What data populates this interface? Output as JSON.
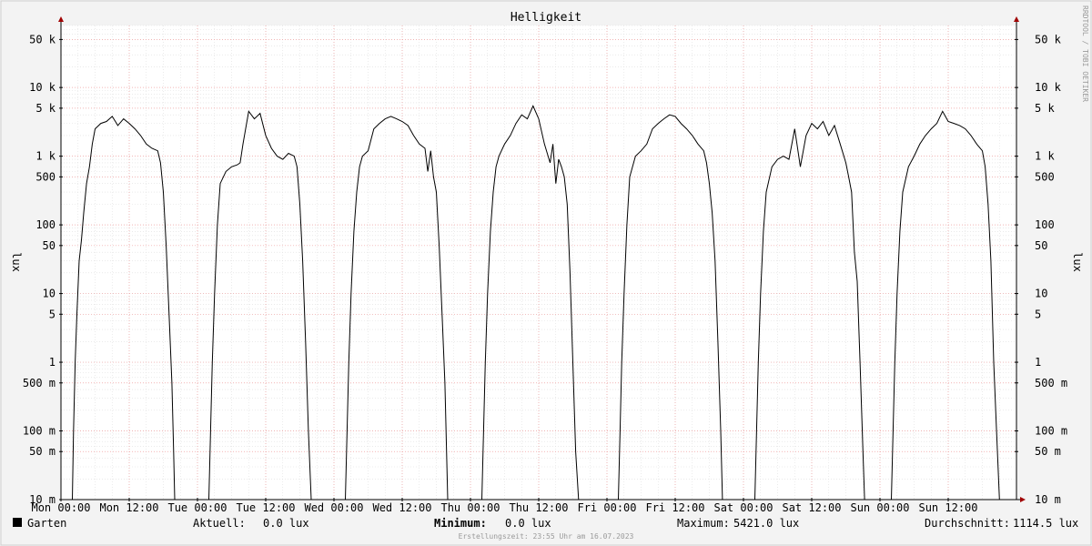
{
  "chart_data": {
    "type": "line",
    "title": "Helligkeit",
    "ylabel": "lux",
    "ylabel_right": "lux",
    "y_scale": "log",
    "ylim": [
      0.01,
      80000
    ],
    "y_ticks": [
      {
        "value": 50000,
        "label": "50 k"
      },
      {
        "value": 10000,
        "label": "10 k"
      },
      {
        "value": 5000,
        "label": "5 k"
      },
      {
        "value": 1000,
        "label": "1 k"
      },
      {
        "value": 500,
        "label": "500"
      },
      {
        "value": 100,
        "label": "100"
      },
      {
        "value": 50,
        "label": "50"
      },
      {
        "value": 10,
        "label": "10"
      },
      {
        "value": 5,
        "label": "5"
      },
      {
        "value": 1,
        "label": "1"
      },
      {
        "value": 0.5,
        "label": "500 m"
      },
      {
        "value": 0.1,
        "label": "100 m"
      },
      {
        "value": 0.05,
        "label": "50 m"
      },
      {
        "value": 0.01,
        "label": "10 m"
      }
    ],
    "xlim": [
      0,
      168
    ],
    "x_tick_labels": [
      "Mon 00:00",
      "Mon 12:00",
      "Tue 00:00",
      "Tue 12:00",
      "Wed 00:00",
      "Wed 12:00",
      "Thu 00:00",
      "Thu 12:00",
      "Fri 00:00",
      "Fri 12:00",
      "Sat 00:00",
      "Sat 12:00",
      "Sun 00:00",
      "Sun 12:00"
    ],
    "x_tick_hours": [
      0,
      12,
      24,
      36,
      48,
      60,
      72,
      84,
      96,
      108,
      120,
      132,
      144,
      156
    ],
    "grid": true,
    "series": [
      {
        "name": "Garten",
        "color": "#000000",
        "points": [
          [
            0,
            0.01
          ],
          [
            2,
            0.01
          ],
          [
            2.2,
            0.1
          ],
          [
            2.5,
            1
          ],
          [
            2.8,
            5
          ],
          [
            3.2,
            30
          ],
          [
            3.6,
            60
          ],
          [
            4,
            150
          ],
          [
            4.5,
            400
          ],
          [
            5,
            700
          ],
          [
            5.5,
            1500
          ],
          [
            6,
            2500
          ],
          [
            7,
            3000
          ],
          [
            8,
            3200
          ],
          [
            9,
            3800
          ],
          [
            10,
            2800
          ],
          [
            11,
            3500
          ],
          [
            12,
            3000
          ],
          [
            13,
            2500
          ],
          [
            14,
            2000
          ],
          [
            15,
            1500
          ],
          [
            16,
            1300
          ],
          [
            17,
            1200
          ],
          [
            17.5,
            800
          ],
          [
            18,
            300
          ],
          [
            18.5,
            50
          ],
          [
            19,
            5
          ],
          [
            19.5,
            0.5
          ],
          [
            19.8,
            0.05
          ],
          [
            20,
            0.01
          ],
          [
            24,
            0.01
          ],
          [
            26,
            0.01
          ],
          [
            26.3,
            0.1
          ],
          [
            26.6,
            1
          ],
          [
            27,
            10
          ],
          [
            27.5,
            100
          ],
          [
            28,
            400
          ],
          [
            29,
            600
          ],
          [
            30,
            700
          ],
          [
            31,
            750
          ],
          [
            31.5,
            800
          ],
          [
            32,
            1500
          ],
          [
            33,
            4500
          ],
          [
            34,
            3500
          ],
          [
            35,
            4200
          ],
          [
            36,
            2000
          ],
          [
            37,
            1300
          ],
          [
            38,
            1000
          ],
          [
            39,
            900
          ],
          [
            40,
            1100
          ],
          [
            41,
            1000
          ],
          [
            41.5,
            700
          ],
          [
            42,
            200
          ],
          [
            42.5,
            30
          ],
          [
            43,
            2
          ],
          [
            43.5,
            0.1
          ],
          [
            44,
            0.01
          ],
          [
            48,
            0.01
          ],
          [
            50,
            0.01
          ],
          [
            50.3,
            0.1
          ],
          [
            50.6,
            1
          ],
          [
            51,
            10
          ],
          [
            51.5,
            80
          ],
          [
            52,
            300
          ],
          [
            52.5,
            700
          ],
          [
            53,
            1000
          ],
          [
            54,
            1200
          ],
          [
            55,
            2500
          ],
          [
            56,
            3000
          ],
          [
            57,
            3500
          ],
          [
            58,
            3800
          ],
          [
            59,
            3500
          ],
          [
            60,
            3200
          ],
          [
            61,
            2800
          ],
          [
            62,
            2000
          ],
          [
            63,
            1500
          ],
          [
            64,
            1300
          ],
          [
            64.5,
            600
          ],
          [
            65,
            1200
          ],
          [
            65.5,
            500
          ],
          [
            66,
            300
          ],
          [
            66.5,
            50
          ],
          [
            67,
            5
          ],
          [
            67.5,
            0.5
          ],
          [
            68,
            0.01
          ],
          [
            72,
            0.01
          ],
          [
            74,
            0.01
          ],
          [
            74.3,
            0.1
          ],
          [
            74.6,
            1
          ],
          [
            75,
            10
          ],
          [
            75.5,
            80
          ],
          [
            76,
            300
          ],
          [
            76.5,
            700
          ],
          [
            77,
            1000
          ],
          [
            78,
            1500
          ],
          [
            79,
            2000
          ],
          [
            80,
            3000
          ],
          [
            81,
            4000
          ],
          [
            82,
            3500
          ],
          [
            83,
            5400
          ],
          [
            84,
            3500
          ],
          [
            85,
            1500
          ],
          [
            86,
            800
          ],
          [
            86.5,
            1500
          ],
          [
            87,
            400
          ],
          [
            87.5,
            900
          ],
          [
            88,
            700
          ],
          [
            88.5,
            500
          ],
          [
            89,
            200
          ],
          [
            89.5,
            20
          ],
          [
            90,
            1
          ],
          [
            90.5,
            0.05
          ],
          [
            91,
            0.01
          ],
          [
            96,
            0.01
          ],
          [
            98,
            0.01
          ],
          [
            98.3,
            0.1
          ],
          [
            98.6,
            1
          ],
          [
            99,
            10
          ],
          [
            99.5,
            100
          ],
          [
            100,
            500
          ],
          [
            101,
            1000
          ],
          [
            102,
            1200
          ],
          [
            103,
            1500
          ],
          [
            104,
            2500
          ],
          [
            105,
            3000
          ],
          [
            106,
            3500
          ],
          [
            107,
            4000
          ],
          [
            108,
            3800
          ],
          [
            109,
            3000
          ],
          [
            110,
            2500
          ],
          [
            111,
            2000
          ],
          [
            112,
            1500
          ],
          [
            113,
            1200
          ],
          [
            113.5,
            800
          ],
          [
            114,
            400
          ],
          [
            114.5,
            150
          ],
          [
            115,
            30
          ],
          [
            115.5,
            2
          ],
          [
            116,
            0.1
          ],
          [
            116.3,
            0.01
          ],
          [
            120,
            0.01
          ],
          [
            122,
            0.01
          ],
          [
            122.3,
            0.1
          ],
          [
            122.6,
            1
          ],
          [
            123,
            10
          ],
          [
            123.5,
            80
          ],
          [
            124,
            300
          ],
          [
            125,
            700
          ],
          [
            126,
            900
          ],
          [
            127,
            1000
          ],
          [
            128,
            900
          ],
          [
            129,
            2500
          ],
          [
            130,
            700
          ],
          [
            131,
            2000
          ],
          [
            132,
            3000
          ],
          [
            133,
            2500
          ],
          [
            134,
            3200
          ],
          [
            135,
            2000
          ],
          [
            136,
            2800
          ],
          [
            137,
            1500
          ],
          [
            138,
            800
          ],
          [
            138.5,
            500
          ],
          [
            139,
            300
          ],
          [
            139.5,
            40
          ],
          [
            140,
            15
          ],
          [
            140.5,
            1
          ],
          [
            141,
            0.05
          ],
          [
            141.3,
            0.01
          ],
          [
            144,
            0.01
          ],
          [
            146,
            0.01
          ],
          [
            146.3,
            0.1
          ],
          [
            146.6,
            1
          ],
          [
            147,
            10
          ],
          [
            147.5,
            80
          ],
          [
            148,
            300
          ],
          [
            149,
            700
          ],
          [
            150,
            1000
          ],
          [
            151,
            1500
          ],
          [
            152,
            2000
          ],
          [
            153,
            2500
          ],
          [
            154,
            3000
          ],
          [
            155,
            4500
          ],
          [
            156,
            3200
          ],
          [
            157,
            3000
          ],
          [
            158,
            2800
          ],
          [
            159,
            2500
          ],
          [
            160,
            2000
          ],
          [
            161,
            1500
          ],
          [
            162,
            1200
          ],
          [
            162.5,
            700
          ],
          [
            163,
            200
          ],
          [
            163.5,
            30
          ],
          [
            164,
            1
          ],
          [
            164.5,
            0.1
          ],
          [
            165,
            0.01
          ],
          [
            168,
            0.01
          ]
        ]
      }
    ]
  },
  "watermark": "RRDTOOL / TOBI OETIKER",
  "legend": {
    "series_name": "Garten",
    "current_label": "Aktuell:",
    "current_value": "0.0 lux",
    "min_label": "Minimum:",
    "min_value": "0.0 lux",
    "max_label": "Maximum:",
    "max_value": "5421.0 lux",
    "avg_label": "Durchschnitt:",
    "avg_value": "1114.5 lux"
  },
  "footer": "Erstellungszeit: 23:55 Uhr am 16.07.2023"
}
